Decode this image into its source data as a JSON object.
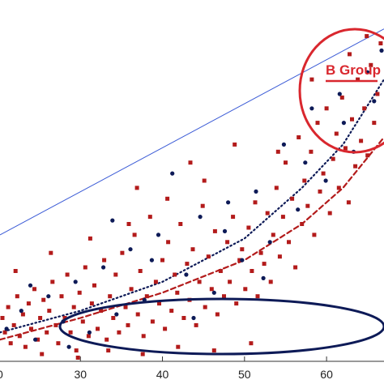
{
  "chart_data": {
    "type": "scatter",
    "x_domain": [
      20.2,
      67
    ],
    "ylim": [
      0,
      100
    ],
    "x_ticks": [
      30,
      40,
      50,
      60
    ],
    "x_tick_labels": [
      "30",
      "40",
      "50",
      "60"
    ],
    "edge_tick_labels": [
      "0"
    ],
    "grid": false,
    "annotation_text": "B Group",
    "colors": {
      "red": "#b31b1b",
      "navy": "#0d1a57",
      "blue_line": "#3b5bd6",
      "annot": "#d9272e",
      "axis": "#333333"
    },
    "series": [
      {
        "marker": "square",
        "color": "#b31b1b",
        "points": [
          [
            20.5,
            12
          ],
          [
            20.8,
            8
          ],
          [
            21.2,
            15
          ],
          [
            21.5,
            5
          ],
          [
            21.9,
            10
          ],
          [
            22.3,
            18
          ],
          [
            22.6,
            7
          ],
          [
            23,
            13
          ],
          [
            23.3,
            4
          ],
          [
            23.7,
            16
          ],
          [
            24,
            9
          ],
          [
            24.4,
            20
          ],
          [
            24.8,
            6
          ],
          [
            25.1,
            12
          ],
          [
            25.5,
            17
          ],
          [
            25.9,
            8
          ],
          [
            26.2,
            14
          ],
          [
            26.6,
            22
          ],
          [
            27,
            10
          ],
          [
            27.3,
            5
          ],
          [
            27.7,
            18
          ],
          [
            28.1,
            12
          ],
          [
            28.4,
            24
          ],
          [
            28.8,
            8
          ],
          [
            29.2,
            15
          ],
          [
            29.5,
            3
          ],
          [
            29.9,
            19
          ],
          [
            30.3,
            11
          ],
          [
            30.6,
            26
          ],
          [
            31,
            7
          ],
          [
            31.4,
            16
          ],
          [
            31.7,
            21
          ],
          [
            32.1,
            9
          ],
          [
            32.5,
            14
          ],
          [
            32.9,
            28
          ],
          [
            33.2,
            6
          ],
          [
            33.6,
            18
          ],
          [
            34,
            12
          ],
          [
            34.3,
            24
          ],
          [
            34.7,
            8
          ],
          [
            35.1,
            30
          ],
          [
            35.5,
            15
          ],
          [
            35.8,
            10
          ],
          [
            36.2,
            20
          ],
          [
            36.6,
            35
          ],
          [
            37,
            13
          ],
          [
            37.3,
            25
          ],
          [
            37.7,
            7
          ],
          [
            38.1,
            18
          ],
          [
            38.5,
            40
          ],
          [
            38.8,
            11
          ],
          [
            39.2,
            22
          ],
          [
            39.6,
            16
          ],
          [
            40,
            28
          ],
          [
            40.3,
            9
          ],
          [
            40.7,
            33
          ],
          [
            41.1,
            14
          ],
          [
            41.5,
            24
          ],
          [
            41.8,
            19
          ],
          [
            42.2,
            38
          ],
          [
            42.6,
            12
          ],
          [
            43,
            27
          ],
          [
            43.3,
            17
          ],
          [
            43.7,
            31
          ],
          [
            44.1,
            10
          ],
          [
            44.5,
            22
          ],
          [
            44.9,
            43
          ],
          [
            45.2,
            15
          ],
          [
            45.6,
            29
          ],
          [
            46,
            20
          ],
          [
            46.4,
            36
          ],
          [
            46.7,
            13
          ],
          [
            47.1,
            25
          ],
          [
            47.5,
            18
          ],
          [
            47.9,
            33
          ],
          [
            48.2,
            22
          ],
          [
            48.6,
            40
          ],
          [
            49,
            16
          ],
          [
            49.4,
            28
          ],
          [
            49.7,
            31
          ],
          [
            50.1,
            20
          ],
          [
            50.5,
            37
          ],
          [
            50.9,
            25
          ],
          [
            51.3,
            44
          ],
          [
            51.6,
            18
          ],
          [
            52,
            30
          ],
          [
            52.4,
            27
          ],
          [
            52.8,
            41
          ],
          [
            53.2,
            22
          ],
          [
            53.5,
            35
          ],
          [
            53.9,
            48
          ],
          [
            54.3,
            29
          ],
          [
            54.7,
            40
          ],
          [
            55,
            55
          ],
          [
            55.4,
            33
          ],
          [
            55.8,
            45
          ],
          [
            56.2,
            26
          ],
          [
            56.6,
            62
          ],
          [
            57,
            38
          ],
          [
            57.3,
            50
          ],
          [
            57.7,
            43
          ],
          [
            58.1,
            58
          ],
          [
            58.5,
            35
          ],
          [
            58.9,
            66
          ],
          [
            59.2,
            47
          ],
          [
            59.6,
            52
          ],
          [
            60,
            70
          ],
          [
            60.4,
            41
          ],
          [
            60.8,
            56
          ],
          [
            61.2,
            63
          ],
          [
            61.5,
            48
          ],
          [
            61.9,
            73
          ],
          [
            62.3,
            59
          ],
          [
            62.7,
            44
          ],
          [
            63.1,
            67
          ],
          [
            63.5,
            54
          ],
          [
            63.8,
            78
          ],
          [
            64.2,
            61
          ],
          [
            64.6,
            70
          ],
          [
            65,
            57
          ],
          [
            65.4,
            82
          ],
          [
            65.8,
            66
          ],
          [
            66.2,
            74
          ],
          [
            66.6,
            88
          ],
          [
            25.3,
            2
          ],
          [
            29.7,
            1
          ],
          [
            33.4,
            3
          ],
          [
            37.6,
            2
          ],
          [
            41.9,
            4
          ],
          [
            46.3,
            3
          ],
          [
            50.8,
            5
          ],
          [
            22.1,
            25
          ],
          [
            26.4,
            30
          ],
          [
            31.2,
            34
          ],
          [
            35.9,
            38
          ],
          [
            40.6,
            45
          ],
          [
            45.1,
            50
          ],
          [
            36.9,
            48
          ],
          [
            43.4,
            55
          ],
          [
            48.8,
            60
          ],
          [
            54.1,
            58
          ],
          [
            58.2,
            78
          ],
          [
            62.8,
            85
          ],
          [
            64.9,
            90
          ]
        ]
      },
      {
        "marker": "circle",
        "color": "#0d1a57",
        "points": [
          [
            21,
            9
          ],
          [
            22.8,
            14
          ],
          [
            24.5,
            6
          ],
          [
            26.1,
            18
          ],
          [
            27.9,
            11
          ],
          [
            29.4,
            22
          ],
          [
            31.1,
            8
          ],
          [
            32.8,
            26
          ],
          [
            34.4,
            13
          ],
          [
            36.1,
            31
          ],
          [
            37.8,
            17
          ],
          [
            39.5,
            35
          ],
          [
            41.2,
            52
          ],
          [
            42.9,
            24
          ],
          [
            44.6,
            40
          ],
          [
            46.3,
            19
          ],
          [
            48,
            44
          ],
          [
            49.7,
            28
          ],
          [
            51.4,
            47
          ],
          [
            53.1,
            33
          ],
          [
            54.8,
            60
          ],
          [
            56.5,
            42
          ],
          [
            58.2,
            70
          ],
          [
            59.9,
            50
          ],
          [
            61.6,
            74
          ],
          [
            63.3,
            58
          ],
          [
            65,
            80
          ],
          [
            66.7,
            86
          ],
          [
            23.9,
            21
          ],
          [
            28.6,
            4
          ],
          [
            33.9,
            39
          ],
          [
            38.7,
            28
          ],
          [
            43.8,
            12
          ],
          [
            47.6,
            36
          ],
          [
            52.3,
            23
          ],
          [
            57.4,
            55
          ],
          [
            62.1,
            66
          ],
          [
            65.8,
            72
          ]
        ]
      }
    ],
    "trend_lines": [
      {
        "style": "solid",
        "color": "#3b5bd6",
        "points": [
          [
            20.2,
            35
          ],
          [
            67,
            92
          ]
        ]
      },
      {
        "style": "dotted",
        "color": "#0d1a57",
        "points": [
          [
            20.2,
            8
          ],
          [
            30,
            14
          ],
          [
            40,
            22
          ],
          [
            50,
            34
          ],
          [
            57,
            48
          ],
          [
            62,
            60
          ],
          [
            67,
            78
          ]
        ]
      },
      {
        "style": "dashed",
        "color": "#b31b1b",
        "points": [
          [
            20.2,
            6
          ],
          [
            30,
            12
          ],
          [
            40,
            19
          ],
          [
            50,
            28
          ],
          [
            57,
            38
          ],
          [
            62,
            48
          ],
          [
            67,
            62
          ]
        ]
      }
    ]
  }
}
